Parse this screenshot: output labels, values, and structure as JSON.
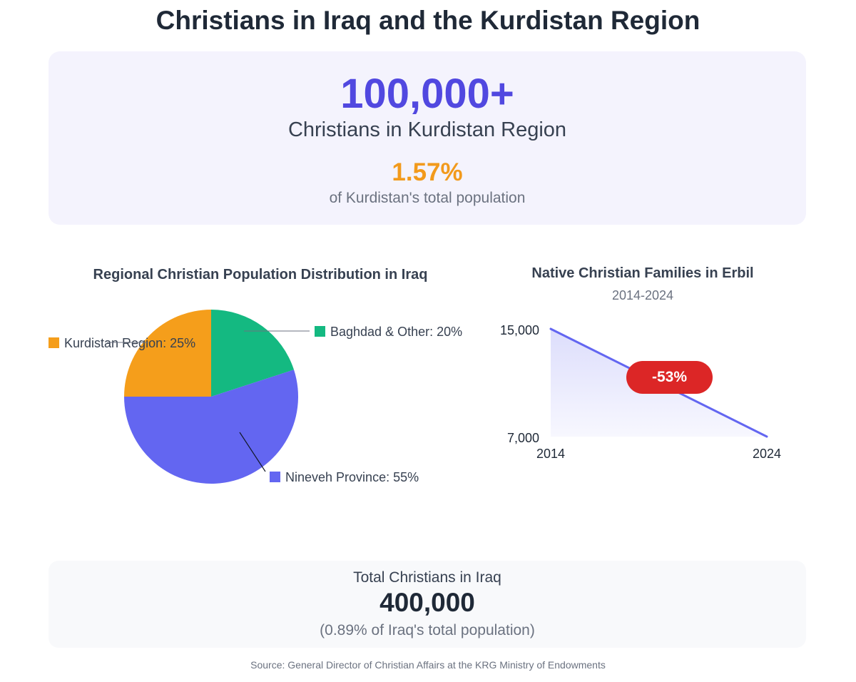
{
  "title": "Christians in Iraq and the Kurdistan Region",
  "hero": {
    "value": "100,000+",
    "label": "Christians in Kurdistan Region",
    "percent": "1.57%",
    "percent_label": "of Kurdistan's total population"
  },
  "total": {
    "label": "Total Christians in Iraq",
    "value": "400,000",
    "note": "(0.89% of Iraq's total population)"
  },
  "source": "Source: General Director of Christian Affairs at the KRG Ministry of Endowments",
  "colors": {
    "kurdistan": "#f59e1b",
    "baghdad": "#14b981",
    "nineveh": "#6366f1",
    "decline_badge": "#dc2626",
    "hero_value": "#5148e0",
    "hero_percent": "#f29a1c"
  },
  "chart_data": [
    {
      "type": "pie",
      "title": "Regional Christian Population Distribution in Iraq",
      "slices": [
        {
          "name": "Baghdad & Other",
          "value": 20,
          "label": "Baghdad & Other: 20%",
          "color": "#14b981"
        },
        {
          "name": "Nineveh Province",
          "value": 55,
          "label": "Nineveh Province: 55%",
          "color": "#6366f1"
        },
        {
          "name": "Kurdistan Region",
          "value": 25,
          "label": "Kurdistan Region: 25%",
          "color": "#f59e1b"
        }
      ]
    },
    {
      "type": "area",
      "title": "Native Christian Families in Erbil",
      "subtitle": "2014-2024",
      "x": [
        2014,
        2024
      ],
      "x_tick_labels": [
        "2014",
        "2024"
      ],
      "y": [
        15000,
        7000
      ],
      "y_tick_labels": [
        "15,000",
        "7,000"
      ],
      "ylim": [
        7000,
        15000
      ],
      "annotation": "-53%",
      "grid": false,
      "legend": "none"
    }
  ]
}
